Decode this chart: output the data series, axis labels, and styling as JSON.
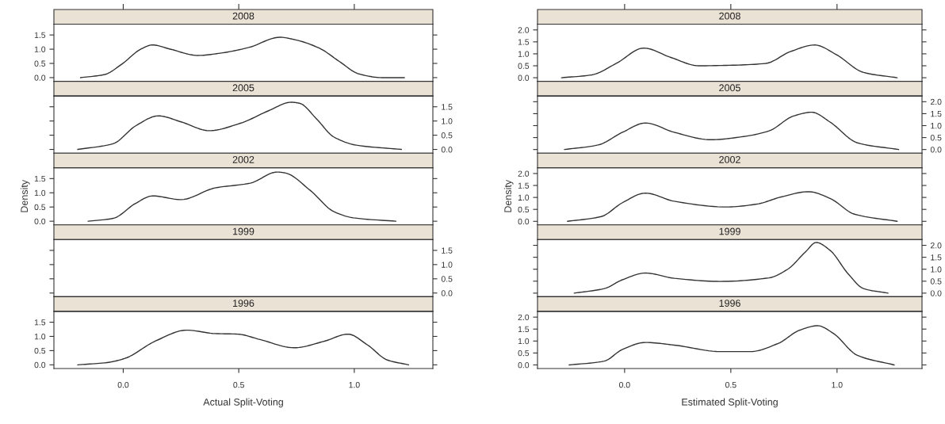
{
  "chart_data": [
    {
      "type": "line",
      "title": "2008",
      "xlim": [
        -0.3,
        1.34
      ],
      "ylim": [
        -0.13,
        1.88
      ],
      "tick_labels": "y",
      "xticks": [
        {
          "value": 0,
          "label": null
        },
        {
          "value": 0.5,
          "label": null
        },
        {
          "value": 1,
          "label": null
        }
      ],
      "yticks": [
        {
          "value": 0,
          "label": "0.0"
        },
        {
          "value": 0.5,
          "label": "0.5"
        },
        {
          "value": 1,
          "label": "1.0"
        },
        {
          "value": 1.5,
          "label": "1.5"
        }
      ],
      "series": [
        {
          "color": "#333333",
          "x": [
            -0.185,
            -0.08,
            -0.007,
            0.078,
            0.127,
            0.2,
            0.323,
            0.42,
            0.543,
            0.678,
            0.75,
            0.85,
            0.935,
            1.02,
            1.12,
            1.217
          ],
          "values": [
            0,
            0.11,
            0.47,
            1.01,
            1.15,
            1.01,
            0.78,
            0.86,
            1.06,
            1.42,
            1.32,
            1.03,
            0.57,
            0.13,
            0.0,
            0
          ]
        }
      ]
    },
    {
      "type": "line",
      "title": "2005",
      "xlim": [
        -0.3,
        1.34
      ],
      "ylim": [
        -0.13,
        1.88
      ],
      "tick_labels": "y",
      "yticks": [
        {
          "value": 0,
          "label": "0.0"
        },
        {
          "value": 0.5,
          "label": "0.5"
        },
        {
          "value": 1,
          "label": "1.0"
        },
        {
          "value": 1.5,
          "label": "1.5"
        }
      ],
      "series": [
        {
          "color": "#333333",
          "x": [
            -0.197,
            -0.044,
            0.054,
            0.152,
            0.25,
            0.372,
            0.507,
            0.629,
            0.727,
            0.764,
            0.837,
            0.911,
            1.009,
            1.204
          ],
          "values": [
            0,
            0.2,
            0.83,
            1.18,
            0.97,
            0.66,
            0.92,
            1.36,
            1.66,
            1.62,
            1.07,
            0.44,
            0.15,
            0
          ]
        }
      ]
    },
    {
      "type": "line",
      "title": "2002",
      "xlim": [
        -0.3,
        1.34
      ],
      "ylim": [
        -0.13,
        1.88
      ],
      "tick_labels": "y",
      "ylabel": "Density",
      "yticks": [
        {
          "value": 0,
          "label": "0.0"
        },
        {
          "value": 0.5,
          "label": "0.5"
        },
        {
          "value": 1,
          "label": "1.0"
        },
        {
          "value": 1.5,
          "label": "1.5"
        }
      ],
      "series": [
        {
          "color": "#333333",
          "x": [
            -0.152,
            -0.044,
            0.054,
            0.127,
            0.25,
            0.397,
            0.55,
            0.666,
            0.7,
            0.81,
            0.911,
            0.996,
            1.18
          ],
          "values": [
            0,
            0.1,
            0.63,
            0.89,
            0.76,
            1.17,
            1.34,
            1.73,
            1.7,
            1.08,
            0.34,
            0.12,
            0
          ]
        }
      ]
    },
    {
      "type": "line",
      "title": "1999",
      "xlim": [
        -0.3,
        1.34
      ],
      "ylim": [
        -0.13,
        1.88
      ],
      "tick_labels": "y",
      "yticks": [
        {
          "value": 0,
          "label": "0.0"
        },
        {
          "value": 0.5,
          "label": "0.5"
        },
        {
          "value": 1,
          "label": "1.0"
        },
        {
          "value": 1.5,
          "label": "1.5"
        }
      ],
      "grid": false
    },
    {
      "type": "line",
      "title": "1996",
      "xlim": [
        -0.3,
        1.34
      ],
      "ylim": [
        -0.13,
        1.88
      ],
      "xlabel": "Actual Split-Voting",
      "xticks": [
        {
          "value": 0,
          "label": "0.0"
        },
        {
          "value": 0.5,
          "label": "0.5"
        },
        {
          "value": 1,
          "label": "1.0"
        }
      ],
      "yticks": [
        {
          "value": 0,
          "label": "0.0"
        },
        {
          "value": 0.5,
          "label": "0.5"
        },
        {
          "value": 1,
          "label": "1.0"
        },
        {
          "value": 1.5,
          "label": "1.5"
        }
      ],
      "series": [
        {
          "color": "#333333",
          "x": [
            -0.197,
            -0.07,
            0.005,
            0.14,
            0.274,
            0.397,
            0.495,
            0.592,
            0.739,
            0.874,
            0.972,
            1.057,
            1.143,
            1.235
          ],
          "values": [
            0,
            0.08,
            0.22,
            0.84,
            1.22,
            1.1,
            1.08,
            0.89,
            0.6,
            0.84,
            1.08,
            0.7,
            0.17,
            0
          ]
        }
      ]
    },
    {
      "type": "line",
      "title": "2008",
      "xlim": [
        -0.41,
        1.4
      ],
      "ylim": [
        -0.15,
        2.24
      ],
      "tick_labels": "y",
      "xticks": [
        {
          "value": 0,
          "label": null
        },
        {
          "value": 0.5,
          "label": null
        },
        {
          "value": 1,
          "label": null
        }
      ],
      "yticks": [
        {
          "value": 0,
          "label": "0.0"
        },
        {
          "value": 0.5,
          "label": "0.5"
        },
        {
          "value": 1,
          "label": "1.0"
        },
        {
          "value": 1.5,
          "label": "1.5"
        },
        {
          "value": 2,
          "label": "2.0"
        }
      ],
      "series": [
        {
          "color": "#333333",
          "x": [
            -0.297,
            -0.154,
            -0.039,
            0.09,
            0.22,
            0.349,
            0.493,
            0.665,
            0.78,
            0.895,
            0.996,
            1.125,
            1.283
          ],
          "values": [
            0,
            0.12,
            0.6,
            1.24,
            0.84,
            0.5,
            0.52,
            0.6,
            1.09,
            1.37,
            0.97,
            0.22,
            0
          ]
        }
      ]
    },
    {
      "type": "line",
      "title": "2005",
      "xlim": [
        -0.41,
        1.4
      ],
      "ylim": [
        -0.15,
        2.24
      ],
      "tick_labels": "y",
      "yticks": [
        {
          "value": 0,
          "label": "0.0"
        },
        {
          "value": 0.5,
          "label": "0.5"
        },
        {
          "value": 1,
          "label": "1.0"
        },
        {
          "value": 1.5,
          "label": "1.5"
        },
        {
          "value": 2,
          "label": "2.0"
        }
      ],
      "series": [
        {
          "color": "#333333",
          "x": [
            -0.283,
            -0.125,
            -0.01,
            0.098,
            0.234,
            0.407,
            0.55,
            0.68,
            0.795,
            0.881,
            0.967,
            1.096,
            1.29
          ],
          "values": [
            0,
            0.19,
            0.72,
            1.11,
            0.72,
            0.41,
            0.53,
            0.78,
            1.4,
            1.56,
            1.15,
            0.28,
            0
          ]
        }
      ]
    },
    {
      "type": "line",
      "title": "2002",
      "xlim": [
        -0.41,
        1.4
      ],
      "ylim": [
        -0.15,
        2.24
      ],
      "tick_labels": "y",
      "ylabel": "Density",
      "yticks": [
        {
          "value": 0,
          "label": "0.0"
        },
        {
          "value": 0.5,
          "label": "0.5"
        },
        {
          "value": 1,
          "label": "1.0"
        },
        {
          "value": 1.5,
          "label": "1.5"
        },
        {
          "value": 2,
          "label": "2.0"
        }
      ],
      "series": [
        {
          "color": "#333333",
          "x": [
            -0.269,
            -0.11,
            -0.01,
            0.098,
            0.234,
            0.478,
            0.622,
            0.737,
            0.866,
            0.967,
            1.082,
            1.283
          ],
          "values": [
            0,
            0.2,
            0.78,
            1.18,
            0.84,
            0.6,
            0.72,
            1.02,
            1.24,
            0.96,
            0.3,
            0
          ]
        }
      ]
    },
    {
      "type": "line",
      "title": "1999",
      "xlim": [
        -0.41,
        1.4
      ],
      "ylim": [
        -0.15,
        2.24
      ],
      "tick_labels": "y",
      "yticks": [
        {
          "value": 0,
          "label": "0.0"
        },
        {
          "value": 0.5,
          "label": "0.5"
        },
        {
          "value": 1,
          "label": "1.0"
        },
        {
          "value": 1.5,
          "label": "1.5"
        },
        {
          "value": 2,
          "label": "2.0"
        }
      ],
      "series": [
        {
          "color": "#333333",
          "x": [
            -0.237,
            -0.096,
            -0.01,
            0.098,
            0.234,
            0.45,
            0.68,
            0.766,
            0.852,
            0.902,
            0.967,
            1.053,
            1.125,
            1.24
          ],
          "values": [
            0,
            0.19,
            0.56,
            0.84,
            0.62,
            0.49,
            0.64,
            0.99,
            1.73,
            2.12,
            1.79,
            0.8,
            0.19,
            0
          ]
        }
      ]
    },
    {
      "type": "line",
      "title": "1996",
      "xlim": [
        -0.41,
        1.4
      ],
      "ylim": [
        -0.15,
        2.24
      ],
      "xlabel": "Estimated Split-Voting",
      "xticks": [
        {
          "value": 0,
          "label": "0.0"
        },
        {
          "value": 0.5,
          "label": "0.5"
        },
        {
          "value": 1,
          "label": "1.0"
        }
      ],
      "yticks": [
        {
          "value": 0,
          "label": "0.0"
        },
        {
          "value": 0.5,
          "label": "0.5"
        },
        {
          "value": 1,
          "label": "1.0"
        },
        {
          "value": 1.5,
          "label": "1.5"
        },
        {
          "value": 2,
          "label": "2.0"
        }
      ],
      "series": [
        {
          "color": "#333333",
          "x": [
            -0.261,
            -0.096,
            -0.01,
            0.098,
            0.234,
            0.45,
            0.593,
            0.723,
            0.823,
            0.909,
            0.981,
            1.096,
            1.269
          ],
          "values": [
            0,
            0.16,
            0.65,
            0.94,
            0.83,
            0.56,
            0.56,
            0.9,
            1.45,
            1.64,
            1.33,
            0.4,
            0
          ]
        }
      ]
    }
  ]
}
